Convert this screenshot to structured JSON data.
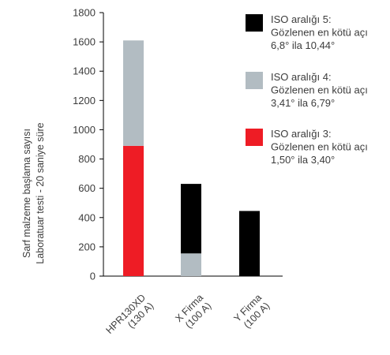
{
  "chart_data": {
    "type": "bar",
    "stacked": true,
    "categories": [
      [
        "HPR130XD",
        "(130 A)"
      ],
      [
        "X Firma",
        "(100 A)"
      ],
      [
        "Y Firma",
        "(100 A)"
      ]
    ],
    "series": [
      {
        "name": [
          "ISO aralığı 3:",
          "Gözlenen en kötü açı",
          "1,50° ila 3,40°"
        ],
        "color": "#ee1c25",
        "values": [
          890,
          0,
          0
        ]
      },
      {
        "name": [
          "ISO aralığı 4:",
          "Gözlenen en kötü açı",
          "3,41° ila 6,79°"
        ],
        "color": "#b2bcc2",
        "values": [
          720,
          155,
          0
        ]
      },
      {
        "name": [
          "ISO aralığı 5:",
          "Gözlenen en kötü açı",
          "6,8° ila 10,44°"
        ],
        "color": "#000000",
        "values": [
          0,
          475,
          445
        ]
      }
    ],
    "ylabel": [
      "Sarf malzeme başlama sayısı",
      "Laboratuar testi - 20 saniye süre"
    ],
    "ylim": [
      0,
      1800
    ],
    "yticks": [
      0,
      200,
      400,
      600,
      800,
      1000,
      1200,
      1400,
      1600,
      1800
    ],
    "legend_order": [
      2,
      1,
      0
    ],
    "legend_position": "top-right",
    "grid": false
  }
}
